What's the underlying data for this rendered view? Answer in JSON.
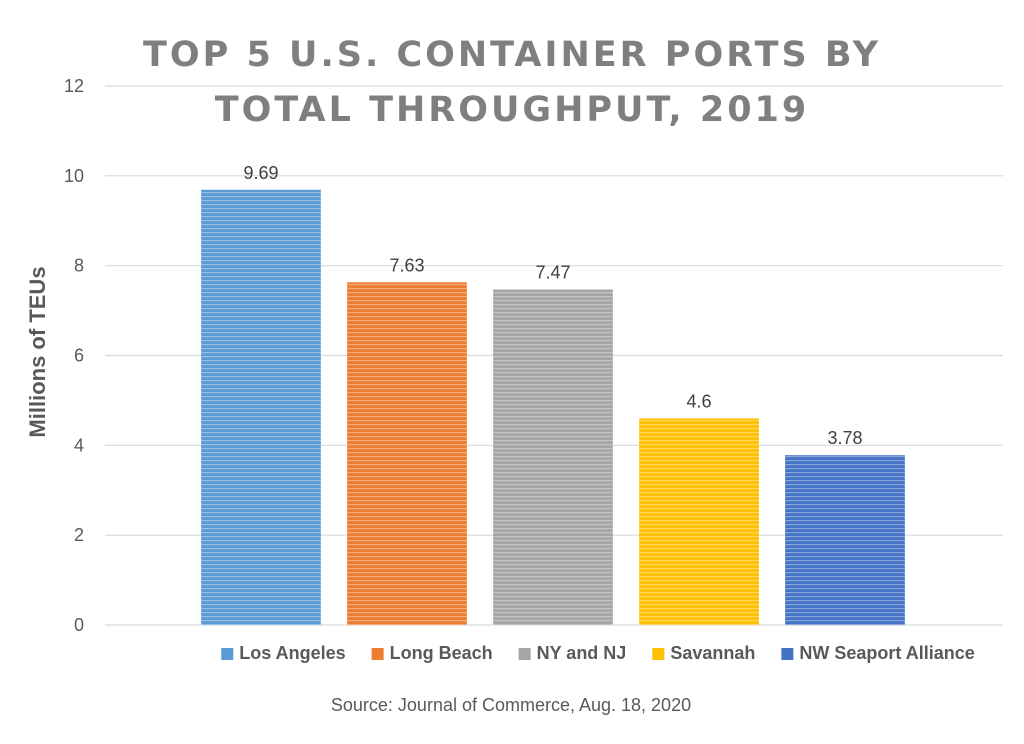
{
  "chart_data": {
    "type": "bar",
    "title": "TOP 5 U.S. CONTAINER PORTS BY TOTAL THROUGHPUT, 2019",
    "title_lines": [
      "TOP 5 U.S. CONTAINER PORTS BY",
      "TOTAL THROUGHPUT, 2019"
    ],
    "ylabel": "Millions of TEUs",
    "xlabel": "",
    "ylim": [
      0,
      12
    ],
    "yticks": [
      0,
      2,
      4,
      6,
      8,
      10,
      12
    ],
    "grid": true,
    "legend_position": "bottom",
    "series": [
      {
        "name": "Los Angeles",
        "value": 9.69,
        "label": "9.69",
        "color": "#5b9bd5"
      },
      {
        "name": "Long Beach",
        "value": 7.63,
        "label": "7.63",
        "color": "#ed7d31"
      },
      {
        "name": "NY and NJ",
        "value": 7.47,
        "label": "7.47",
        "color": "#a5a5a5"
      },
      {
        "name": "Savannah",
        "value": 4.6,
        "label": "4.6",
        "color": "#ffc000"
      },
      {
        "name": "NW Seaport Alliance",
        "value": 3.78,
        "label": "3.78",
        "color": "#4472c4"
      }
    ],
    "source": "Source: Journal of Commerce, Aug. 18, 2020"
  }
}
